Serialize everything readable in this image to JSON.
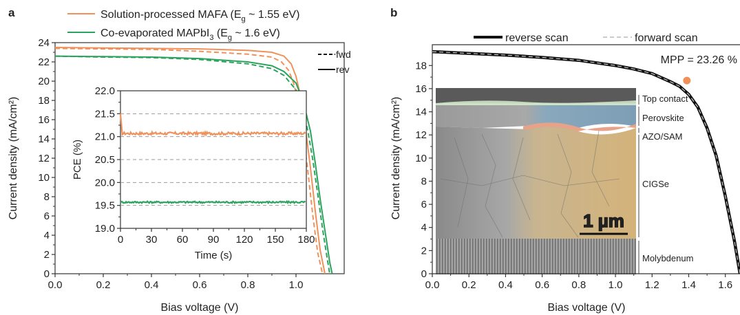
{
  "panels": {
    "a": {
      "letter": "a"
    },
    "b": {
      "letter": "b"
    }
  },
  "chart_data": [
    {
      "type": "line",
      "panel": "a",
      "xlabel": "Bias voltage (V)",
      "ylabel": "Current density (mA/cm²)",
      "xlim": [
        0,
        1.2
      ],
      "ylim": [
        0,
        24
      ],
      "xticks": [
        "0.0",
        "0.2",
        "0.4",
        "0.6",
        "0.8",
        "1.0"
      ],
      "yticks": [
        "0",
        "2",
        "4",
        "6",
        "8",
        "10",
        "12",
        "14",
        "16",
        "18",
        "20",
        "22",
        "24"
      ],
      "legend": {
        "placement": "top",
        "entries": [
          {
            "series": "mafa",
            "label": "Solution-processed MAFA (E",
            "sub": "g",
            "suffix": " ~ 1.55 eV)"
          },
          {
            "series": "mapbi",
            "label": "Co-evaporated MAPbI",
            "sub": "3",
            "suffix": " (E",
            "sub2": "g",
            "suffix2": " ~ 1.6 eV)"
          }
        ],
        "style_entries": [
          {
            "label": "fwd",
            "dash": true
          },
          {
            "label": "rev",
            "dash": false
          }
        ]
      },
      "series": [
        {
          "id": "mafa",
          "scan": "rev",
          "color": "#f0915a",
          "x": [
            0,
            0.2,
            0.4,
            0.6,
            0.8,
            0.9,
            0.95,
            0.98,
            1.0,
            1.02,
            1.04,
            1.06,
            1.08,
            1.1,
            1.12
          ],
          "y": [
            23.5,
            23.45,
            23.4,
            23.35,
            23.2,
            23.0,
            22.6,
            21.8,
            20.5,
            18.3,
            15.0,
            11.0,
            6.5,
            2.5,
            0
          ]
        },
        {
          "id": "mafa",
          "scan": "fwd",
          "color": "#f0915a",
          "x": [
            0,
            0.2,
            0.4,
            0.6,
            0.8,
            0.9,
            0.94,
            0.97,
            0.99,
            1.01,
            1.03,
            1.05,
            1.07,
            1.09,
            1.11
          ],
          "y": [
            23.4,
            23.35,
            23.3,
            23.1,
            22.8,
            22.5,
            22.0,
            21.1,
            19.8,
            17.8,
            14.5,
            10.5,
            6.0,
            2.2,
            0
          ]
        },
        {
          "id": "mapbi",
          "scan": "rev",
          "color": "#2ba35d",
          "x": [
            0,
            0.2,
            0.4,
            0.6,
            0.8,
            0.9,
            0.95,
            1.0,
            1.03,
            1.06,
            1.08,
            1.1,
            1.12,
            1.14,
            1.15
          ],
          "y": [
            22.6,
            22.55,
            22.5,
            22.35,
            22.0,
            21.6,
            21.0,
            19.8,
            17.9,
            14.8,
            11.5,
            7.8,
            4.5,
            1.2,
            0
          ]
        },
        {
          "id": "mapbi",
          "scan": "fwd",
          "color": "#2ba35d",
          "x": [
            0,
            0.2,
            0.4,
            0.6,
            0.8,
            0.9,
            0.95,
            1.0,
            1.03,
            1.05,
            1.07,
            1.09,
            1.11,
            1.13,
            1.14
          ],
          "y": [
            22.6,
            22.5,
            22.45,
            22.25,
            21.8,
            21.3,
            20.6,
            19.1,
            17.0,
            14.7,
            11.8,
            8.3,
            4.7,
            1.5,
            0
          ]
        }
      ],
      "inset": {
        "type": "line",
        "xlabel": "Time (s)",
        "ylabel": "PCE (%)",
        "xlim": [
          0,
          180
        ],
        "ylim": [
          19.0,
          22.0
        ],
        "xticks": [
          "0",
          "30",
          "60",
          "90",
          "120",
          "150",
          "180"
        ],
        "yticks": [
          "19.0",
          "19.5",
          "20.0",
          "20.5",
          "21.0",
          "21.5",
          "22.0"
        ],
        "series": [
          {
            "id": "mafa",
            "color": "#f0915a",
            "mean": 21.07,
            "noise": 0.03,
            "start_spike": 21.5
          },
          {
            "id": "mapbi",
            "color": "#2ba35d",
            "mean": 19.57,
            "noise": 0.02
          }
        ]
      }
    },
    {
      "type": "line",
      "panel": "b",
      "xlabel": "Bias voltage (V)",
      "ylabel": "Current density (mA/cm²)",
      "xlim": [
        0,
        1.68
      ],
      "ylim": [
        0,
        19.8
      ],
      "xticks": [
        "0.0",
        "0.2",
        "0.4",
        "0.6",
        "0.8",
        "1.0",
        "1.2",
        "1.4",
        "1.6"
      ],
      "yticks": [
        "0",
        "2",
        "4",
        "6",
        "8",
        "10",
        "12",
        "14",
        "16",
        "18"
      ],
      "legend": {
        "placement": "top",
        "entries": [
          {
            "label": "reverse scan",
            "dash": false
          },
          {
            "label": "forward scan",
            "dash": true
          }
        ]
      },
      "series": [
        {
          "scan": "reverse",
          "color": "#111111",
          "x": [
            0,
            0.2,
            0.4,
            0.6,
            0.8,
            1.0,
            1.1,
            1.2,
            1.3,
            1.35,
            1.4,
            1.45,
            1.5,
            1.55,
            1.6,
            1.65,
            1.68
          ],
          "y": [
            19.2,
            19.05,
            18.9,
            18.7,
            18.45,
            18.0,
            17.7,
            17.3,
            16.6,
            16.2,
            15.5,
            14.4,
            12.6,
            10.2,
            6.7,
            2.8,
            0
          ]
        },
        {
          "scan": "forward",
          "color": "#cccccc",
          "x": [
            0,
            0.2,
            0.4,
            0.6,
            0.8,
            1.0,
            1.1,
            1.2,
            1.3,
            1.35,
            1.4,
            1.45,
            1.5,
            1.55,
            1.6,
            1.65,
            1.68
          ],
          "y": [
            19.2,
            19.05,
            18.9,
            18.7,
            18.45,
            18.0,
            17.7,
            17.3,
            16.6,
            16.2,
            15.5,
            14.4,
            12.6,
            10.2,
            6.7,
            2.8,
            0
          ]
        }
      ],
      "mpp": {
        "x": 1.39,
        "y": 16.7,
        "label": "MPP = 23.26 %",
        "color": "#f0915a"
      },
      "cross_section": {
        "scale_bar": "1 µm",
        "layers": [
          {
            "label": "Top contact",
            "color": "#5e8f6a"
          },
          {
            "label": "Perovskite",
            "color": "#5d7d95"
          },
          {
            "label": "AZO/SAM",
            "color": "#e0713a"
          },
          {
            "label": "CIGSe",
            "color": "#c6a064"
          },
          {
            "label": "Molybdenum",
            "color": "#555555"
          }
        ]
      }
    }
  ]
}
